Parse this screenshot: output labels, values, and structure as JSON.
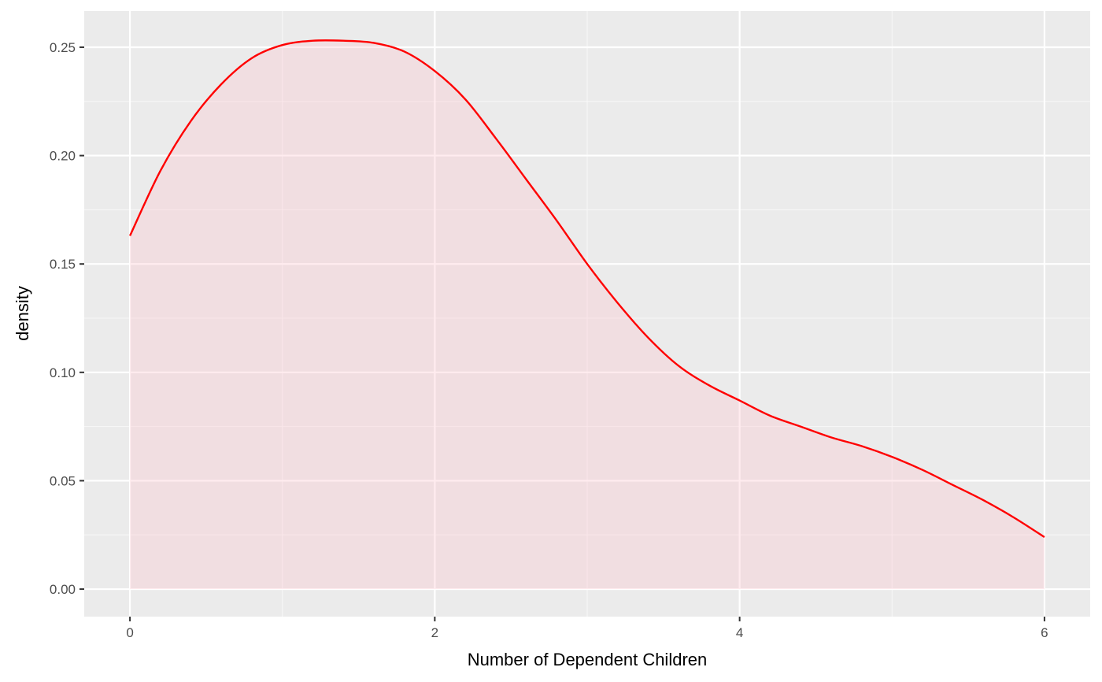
{
  "chart_data": {
    "type": "area",
    "title": "",
    "xlabel": "Number of Dependent Children",
    "ylabel": "density",
    "xlim": [
      -0.3,
      6.3
    ],
    "ylim": [
      -0.0127,
      0.2667
    ],
    "x_ticks": [
      0,
      2,
      4,
      6
    ],
    "x_tick_labels": [
      "0",
      "2",
      "4",
      "6"
    ],
    "y_ticks": [
      0.0,
      0.05,
      0.1,
      0.15,
      0.2,
      0.25
    ],
    "y_tick_labels": [
      "0.00",
      "0.05",
      "0.10",
      "0.15",
      "0.20",
      "0.25"
    ],
    "grid": true,
    "legend": "none",
    "series": [
      {
        "x": [
          0,
          0.2,
          0.4,
          0.6,
          0.8,
          1.0,
          1.2,
          1.4,
          1.6,
          1.8,
          2.0,
          2.2,
          2.4,
          2.6,
          2.8,
          3.0,
          3.2,
          3.4,
          3.6,
          3.8,
          4.0,
          4.2,
          4.4,
          4.6,
          4.8,
          5.0,
          5.2,
          5.4,
          5.6,
          5.8,
          6.0
        ],
        "y": [
          0.163,
          0.193,
          0.216,
          0.233,
          0.245,
          0.251,
          0.253,
          0.253,
          0.252,
          0.248,
          0.239,
          0.226,
          0.208,
          0.189,
          0.17,
          0.15,
          0.132,
          0.116,
          0.103,
          0.094,
          0.087,
          0.08,
          0.075,
          0.07,
          0.066,
          0.061,
          0.055,
          0.048,
          0.041,
          0.033,
          0.024
        ]
      }
    ],
    "colors": {
      "panel_background": "#ebebeb",
      "grid_major": "#ffffff",
      "grid_minor": "#f7f7f7",
      "line": "#ff0000",
      "fill": "#ffc0cb",
      "fill_opacity": 0.3
    }
  }
}
